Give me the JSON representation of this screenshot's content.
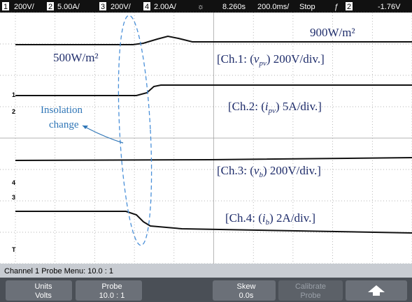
{
  "status_bar": {
    "ch1_num": "1",
    "ch1_scale": "200V/",
    "ch2_num": "2",
    "ch2_scale": "5.00A/",
    "ch3_num": "3",
    "ch3_scale": "200V/",
    "ch4_num": "4",
    "ch4_scale": "2.00A/",
    "time_pos": "8.260s",
    "time_scale": "200.0ms/",
    "run_state": "Stop",
    "trig_src": "2",
    "trig_level": "-1.76V"
  },
  "annotations": {
    "high_irr": "900W/m²",
    "low_irr": "500W/m²",
    "ch1": [
      "[Ch.1: (",
      "v",
      "pv",
      ") 200V/div.]"
    ],
    "ch2": [
      "[Ch.2: (",
      "i",
      "pv",
      ") 5A/div.]"
    ],
    "ch3": [
      "[Ch.3: (",
      "v",
      "b",
      ") 200V/div.]"
    ],
    "ch4": [
      "[Ch.4: (",
      "i",
      "b",
      ") 2A/div.]"
    ],
    "insolation": [
      "Insolation",
      "change"
    ]
  },
  "markers": {
    "m1": "1",
    "m2": "2",
    "m4": "4",
    "m3": "3",
    "trigger": "T"
  },
  "menu": {
    "title": "Channel 1 Probe Menu: 10.0 : 1",
    "buttons": [
      [
        "Units",
        "Volts"
      ],
      [
        "Probe",
        "10.0 : 1"
      ],
      [
        "Skew",
        "0.0s"
      ],
      [
        "Calibrate",
        "Probe"
      ]
    ]
  }
}
